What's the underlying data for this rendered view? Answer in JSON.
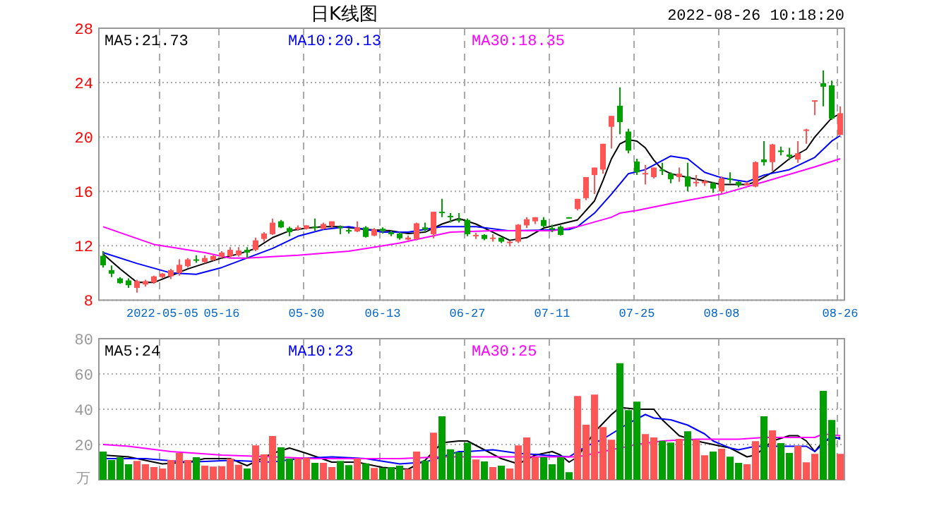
{
  "chart_data": [
    {
      "type": "candlestick",
      "title": "日K线图",
      "subtitle": "2022-08-26 10:18:20",
      "categories": [
        null,
        null,
        null,
        null,
        null,
        null,
        null,
        "2022-05-05",
        null,
        null,
        null,
        null,
        null,
        null,
        "05-16",
        null,
        null,
        null,
        null,
        null,
        null,
        null,
        null,
        null,
        "05-30",
        null,
        null,
        null,
        null,
        null,
        null,
        null,
        null,
        "06-13",
        null,
        null,
        null,
        null,
        null,
        null,
        null,
        null,
        null,
        "06-27",
        null,
        null,
        null,
        null,
        null,
        null,
        null,
        null,
        null,
        "07-11",
        null,
        null,
        null,
        null,
        null,
        null,
        null,
        null,
        null,
        "07-25",
        null,
        null,
        null,
        null,
        null,
        null,
        null,
        null,
        null,
        "08-08",
        null,
        null,
        null,
        null,
        null,
        null,
        null,
        null,
        null,
        null,
        null,
        null,
        null,
        "08-26"
      ],
      "ohlc": [
        [
          11.26,
          11.6,
          10.4,
          10.56
        ],
        [
          10.2,
          10.55,
          9.7,
          9.95
        ],
        [
          9.6,
          9.7,
          9.2,
          9.25
        ],
        [
          9.45,
          9.6,
          8.9,
          9.1
        ],
        [
          8.9,
          9.5,
          8.55,
          9.4
        ],
        [
          9.15,
          9.5,
          9.0,
          9.4
        ],
        [
          9.3,
          9.8,
          9.2,
          9.75
        ],
        [
          9.7,
          10.0,
          9.6,
          9.95
        ],
        [
          9.75,
          10.3,
          9.55,
          10.2
        ],
        [
          10.0,
          11.0,
          9.8,
          10.6
        ],
        [
          10.5,
          11.1,
          10.4,
          11.0
        ],
        [
          11.0,
          11.3,
          10.75,
          10.95
        ],
        [
          10.8,
          11.3,
          10.7,
          11.1
        ],
        [
          10.95,
          11.3,
          10.9,
          11.25
        ],
        [
          11.2,
          11.6,
          11.1,
          11.5
        ],
        [
          11.25,
          11.9,
          11.1,
          11.7
        ],
        [
          11.3,
          11.9,
          11.2,
          11.65
        ],
        [
          11.7,
          11.9,
          11.1,
          11.5
        ],
        [
          11.7,
          12.6,
          11.6,
          12.4
        ],
        [
          12.5,
          13.0,
          12.3,
          12.9
        ],
        [
          12.85,
          14.0,
          12.8,
          13.7
        ],
        [
          13.8,
          13.9,
          13.3,
          13.35
        ],
        [
          13.3,
          13.4,
          12.7,
          13.0
        ],
        [
          13.2,
          13.5,
          13.1,
          13.35
        ],
        [
          13.25,
          13.5,
          13.2,
          13.5
        ],
        [
          13.4,
          14.0,
          13.1,
          13.35
        ],
        [
          13.25,
          13.7,
          13.2,
          13.6
        ],
        [
          13.45,
          13.8,
          13.3,
          13.8
        ],
        [
          13.4,
          13.5,
          12.85,
          13.3
        ],
        [
          13.15,
          13.3,
          12.9,
          13.05
        ],
        [
          13.05,
          13.8,
          13.0,
          13.35
        ],
        [
          13.35,
          13.45,
          12.6,
          12.65
        ],
        [
          12.75,
          13.3,
          12.7,
          13.2
        ],
        [
          13.25,
          13.35,
          12.9,
          13.1
        ],
        [
          13.0,
          13.1,
          12.7,
          12.85
        ],
        [
          12.9,
          13.0,
          12.45,
          12.55
        ],
        [
          12.45,
          12.75,
          12.4,
          12.6
        ],
        [
          12.5,
          13.7,
          12.4,
          13.65
        ],
        [
          13.35,
          13.7,
          13.0,
          13.2
        ],
        [
          12.85,
          14.5,
          12.55,
          14.5
        ],
        [
          14.5,
          15.45,
          14.1,
          14.4
        ],
        [
          14.2,
          14.4,
          13.7,
          14.1
        ],
        [
          13.95,
          14.4,
          13.7,
          13.85
        ],
        [
          13.9,
          14.0,
          12.7,
          12.85
        ],
        [
          12.75,
          12.95,
          12.5,
          12.8
        ],
        [
          12.8,
          12.85,
          12.4,
          12.5
        ],
        [
          12.55,
          12.85,
          12.3,
          12.6
        ],
        [
          12.6,
          12.6,
          12.2,
          12.3
        ],
        [
          12.2,
          12.35,
          11.95,
          12.3
        ],
        [
          12.3,
          13.6,
          12.2,
          13.55
        ],
        [
          13.5,
          14.1,
          13.3,
          13.95
        ],
        [
          13.8,
          14.1,
          13.6,
          14.1
        ],
        [
          13.9,
          14.1,
          13.35,
          13.45
        ],
        [
          13.3,
          13.55,
          13.0,
          13.2
        ],
        [
          13.4,
          13.5,
          12.75,
          12.8
        ],
        [
          14.1,
          14.1,
          14.0,
          14.05
        ],
        [
          14.7,
          15.45,
          14.6,
          15.45
        ],
        [
          15.5,
          17.05,
          15.35,
          17.05
        ],
        [
          17.2,
          17.75,
          15.8,
          17.75
        ],
        [
          17.6,
          19.5,
          17.3,
          19.5
        ],
        [
          20.75,
          21.55,
          19.15,
          21.55
        ],
        [
          22.3,
          23.65,
          20.2,
          21.1
        ],
        [
          20.4,
          20.6,
          18.8,
          19.0
        ],
        [
          18.2,
          18.4,
          17.2,
          17.4
        ],
        [
          17.3,
          17.95,
          16.5,
          17.35
        ],
        [
          17.05,
          17.75,
          16.95,
          17.75
        ],
        [
          17.6,
          18.1,
          17.2,
          17.5
        ],
        [
          17.3,
          17.4,
          16.6,
          16.9
        ],
        [
          17.05,
          17.75,
          16.7,
          17.3
        ],
        [
          17.1,
          18.1,
          16.0,
          16.35
        ],
        [
          16.65,
          17.2,
          16.35,
          16.7
        ],
        [
          16.6,
          16.85,
          16.4,
          16.75
        ],
        [
          16.6,
          16.7,
          15.9,
          16.2
        ],
        [
          16.0,
          17.1,
          15.85,
          16.95
        ],
        [
          16.95,
          17.4,
          16.6,
          16.9
        ],
        [
          16.7,
          16.75,
          16.3,
          16.45
        ],
        [
          16.45,
          16.7,
          16.45,
          16.6
        ],
        [
          16.35,
          18.2,
          16.3,
          18.15
        ],
        [
          18.35,
          19.7,
          17.9,
          18.15
        ],
        [
          18.15,
          19.5,
          17.5,
          19.45
        ],
        [
          19.0,
          19.3,
          18.65,
          18.95
        ],
        [
          18.7,
          19.2,
          18.3,
          18.55
        ],
        [
          18.35,
          19.7,
          18.1,
          18.8
        ],
        [
          20.5,
          20.6,
          19.5,
          20.55
        ],
        [
          22.65,
          22.7,
          21.6,
          22.7
        ],
        [
          23.95,
          24.9,
          22.25,
          23.7
        ],
        [
          23.8,
          24.15,
          21.25,
          21.35
        ],
        [
          20.15,
          22.25,
          20.15,
          21.75
        ]
      ],
      "series": [
        {
          "name": "MA5:21.73",
          "type": "line",
          "color": "#000000",
          "values": [
            11.4,
            null,
            10.3,
            null,
            9.3,
            null,
            9.3,
            null,
            9.8,
            null,
            10.3,
            null,
            10.7,
            null,
            11.1,
            null,
            11.4,
            null,
            11.8,
            null,
            12.6,
            null,
            13.1,
            null,
            13.3,
            null,
            13.4,
            null,
            13.4,
            null,
            null,
            13.2,
            null,
            null,
            13.1,
            null,
            12.9,
            null,
            13.0,
            null,
            13.6,
            null,
            14.0,
            null,
            13.6,
            null,
            13.0,
            null,
            12.4,
            null,
            12.6,
            null,
            13.3,
            null,
            13.6,
            null,
            13.9,
            null,
            15.3,
            16.8,
            18.4,
            19.5,
            19.8,
            19.7,
            19.2,
            18.3,
            17.6,
            17.3,
            null,
            null,
            16.9,
            null,
            null,
            16.5,
            null,
            null,
            16.5,
            16.7,
            null,
            17.4,
            null,
            18.4,
            null,
            19.1,
            20.0,
            null,
            21.4,
            21.7
          ]
        },
        {
          "name": "MA10:20.13",
          "type": "line",
          "color": "#0000ff",
          "values": [
            11.5,
            null,
            null,
            null,
            10.7,
            null,
            null,
            null,
            10.0,
            null,
            null,
            9.9,
            null,
            null,
            10.4,
            null,
            null,
            11.1,
            null,
            null,
            11.8,
            null,
            null,
            12.7,
            null,
            null,
            13.2,
            null,
            null,
            13.4,
            null,
            null,
            null,
            13.0,
            null,
            null,
            13.0,
            null,
            null,
            null,
            13.4,
            null,
            null,
            null,
            13.4,
            null,
            null,
            null,
            13.1,
            null,
            null,
            null,
            null,
            null,
            null,
            13.2,
            13.4,
            null,
            14.4,
            null,
            15.8,
            null,
            17.3,
            null,
            17.6,
            null,
            null,
            18.6,
            null,
            18.4,
            null,
            17.4,
            null,
            17.0,
            null,
            null,
            16.7,
            null,
            17.2,
            null,
            null,
            17.6,
            null,
            null,
            18.5,
            null,
            19.7,
            20.1
          ]
        },
        {
          "name": "MA30:18.35",
          "type": "line",
          "color": "#ff00ff",
          "values": [
            13.4,
            null,
            null,
            null,
            null,
            null,
            12.1,
            null,
            null,
            null,
            null,
            null,
            11.5,
            null,
            null,
            11.1,
            null,
            11.1,
            null,
            null,
            null,
            null,
            null,
            11.3,
            null,
            null,
            null,
            null,
            null,
            11.6,
            null,
            11.8,
            null,
            null,
            null,
            12.2,
            null,
            null,
            null,
            null,
            null,
            13.0,
            null,
            null,
            null,
            null,
            13.1,
            null,
            null,
            null,
            null,
            null,
            null,
            13.1,
            null,
            null,
            13.4,
            null,
            null,
            null,
            14.1,
            14.4,
            null,
            14.6,
            null,
            null,
            null,
            15.1,
            null,
            null,
            null,
            null,
            null,
            15.8,
            null,
            null,
            null,
            null,
            16.7,
            null,
            null,
            null,
            null,
            null,
            17.8,
            null,
            null,
            18.4
          ]
        }
      ],
      "ylim": [
        8,
        28
      ],
      "yticks": [
        8,
        12,
        16,
        20,
        24,
        28
      ],
      "grid": true,
      "legend": "top"
    },
    {
      "type": "bar",
      "ylabel": "万",
      "categories": [
        null,
        null,
        null,
        null,
        null,
        null,
        null,
        null,
        null,
        null,
        null,
        null,
        null,
        null,
        null,
        null,
        null,
        null,
        null,
        null,
        null,
        null,
        null,
        null,
        null,
        null,
        null,
        null,
        null,
        null,
        null,
        null,
        null,
        null,
        null,
        null,
        null,
        null,
        null,
        null,
        null,
        null,
        null,
        null,
        null,
        null,
        null,
        null,
        null,
        null,
        null,
        null,
        null,
        null,
        null,
        null,
        null,
        null,
        null,
        null,
        null,
        null,
        null,
        null,
        null,
        null,
        null,
        null,
        null,
        null,
        null,
        null,
        null,
        null,
        null,
        null,
        null,
        null,
        null,
        null,
        null,
        null,
        null,
        null,
        null,
        null,
        null,
        null
      ],
      "values": [
        16,
        11.2,
        12.8,
        8.8,
        10.7,
        8.8,
        7.2,
        6.4,
        11.2,
        15.2,
        11.2,
        12.8,
        8,
        7.5,
        7.7,
        12,
        8.5,
        6.4,
        19.5,
        14.4,
        24.8,
        18.4,
        12,
        12,
        12.5,
        9.6,
        9.6,
        7.2,
        10.7,
        8.3,
        12,
        9.3,
        6.7,
        6.7,
        7.2,
        8,
        6.1,
        16,
        10.9,
        26.7,
        36,
        17.3,
        15.7,
        21,
        11.5,
        10.4,
        7.2,
        8,
        6.4,
        19.5,
        24,
        12.8,
        12.8,
        8.8,
        12.8,
        4.3,
        47.5,
        31.2,
        48.3,
        29.9,
        22.7,
        66.1,
        39.5,
        44.3,
        25.9,
        24,
        22.1,
        21.1,
        23.2,
        27.5,
        22.7,
        13.9,
        16,
        17.6,
        13.1,
        9.6,
        8.8,
        21.9,
        36,
        28,
        20.8,
        15.2,
        19.2,
        9.9,
        14.7,
        50.4,
        33.9,
        14.7
      ],
      "colors": [
        "#00a000",
        "#00a000",
        "#00a000",
        "#00a000",
        "#ff5555",
        "#ff5555",
        "#ff5555",
        "#ff5555",
        "#ff5555",
        "#ff5555",
        "#ff5555",
        "#00a000",
        "#ff5555",
        "#ff5555",
        "#ff5555",
        "#ff5555",
        "#ff5555",
        "#00a000",
        "#ff5555",
        "#ff5555",
        "#ff5555",
        "#00a000",
        "#00a000",
        "#ff5555",
        "#ff5555",
        "#00a000",
        "#ff5555",
        "#ff5555",
        "#00a000",
        "#00a000",
        "#ff5555",
        "#00a000",
        "#ff5555",
        "#00a000",
        "#00a000",
        "#00a000",
        "#ff5555",
        "#ff5555",
        "#00a000",
        "#ff5555",
        "#00a000",
        "#00a000",
        "#00a000",
        "#00a000",
        "#ff5555",
        "#00a000",
        "#ff5555",
        "#00a000",
        "#ff5555",
        "#ff5555",
        "#ff5555",
        "#ff5555",
        "#00a000",
        "#00a000",
        "#00a000",
        "#00a000",
        "#ff5555",
        "#ff5555",
        "#ff5555",
        "#ff5555",
        "#ff5555",
        "#00a000",
        "#00a000",
        "#00a000",
        "#ff5555",
        "#ff5555",
        "#00a000",
        "#00a000",
        "#ff5555",
        "#00a000",
        "#ff5555",
        "#ff5555",
        "#00a000",
        "#ff5555",
        "#00a000",
        "#00a000",
        "#ff5555",
        "#ff5555",
        "#00a000",
        "#ff5555",
        "#00a000",
        "#00a000",
        "#ff5555",
        "#ff5555",
        "#ff5555",
        "#00a000",
        "#00a000",
        "#ff5555"
      ],
      "series": [
        {
          "name": "MA5:24",
          "type": "line",
          "color": "#000000",
          "values": [
            14,
            null,
            null,
            13,
            null,
            11,
            null,
            9,
            null,
            null,
            10,
            null,
            12,
            null,
            null,
            12,
            null,
            8,
            null,
            null,
            15,
            null,
            18,
            null,
            15,
            null,
            null,
            10,
            null,
            null,
            10,
            null,
            null,
            7,
            null,
            null,
            6,
            null,
            11,
            null,
            21,
            null,
            22,
            22,
            null,
            17,
            null,
            12,
            null,
            9,
            null,
            14,
            null,
            16,
            14,
            10,
            13,
            null,
            27,
            null,
            37,
            41,
            null,
            40,
            null,
            40,
            34,
            null,
            25,
            null,
            22,
            null,
            20,
            null,
            18,
            null,
            13,
            14,
            null,
            22,
            null,
            25,
            25,
            22,
            16,
            22,
            null,
            24
          ]
        },
        {
          "name": "MA10:23",
          "type": "line",
          "color": "#0000ff",
          "values": [
            12,
            null,
            null,
            null,
            null,
            12,
            null,
            null,
            null,
            null,
            10,
            null,
            null,
            null,
            null,
            11,
            null,
            null,
            null,
            null,
            10,
            null,
            null,
            12,
            null,
            null,
            null,
            13,
            null,
            null,
            null,
            12,
            null,
            null,
            null,
            9,
            null,
            null,
            10,
            null,
            13,
            null,
            16,
            16,
            null,
            null,
            17,
            null,
            null,
            15,
            null,
            null,
            14,
            null,
            null,
            13,
            null,
            19,
            null,
            23,
            null,
            null,
            32,
            null,
            37,
            35,
            null,
            34,
            null,
            31,
            null,
            26,
            22,
            null,
            18,
            17,
            null,
            19,
            null,
            null,
            19,
            null,
            null,
            19,
            16,
            null,
            25,
            23
          ]
        },
        {
          "name": "MA30:25",
          "type": "line",
          "color": "#ff00ff",
          "values": [
            20,
            null,
            null,
            19,
            null,
            null,
            null,
            null,
            16,
            null,
            null,
            null,
            null,
            null,
            14,
            null,
            null,
            null,
            null,
            null,
            13,
            null,
            null,
            null,
            null,
            12,
            null,
            null,
            null,
            null,
            12,
            null,
            null,
            null,
            null,
            12,
            null,
            null,
            null,
            null,
            13,
            null,
            null,
            13,
            null,
            null,
            null,
            null,
            null,
            null,
            13,
            null,
            null,
            null,
            null,
            null,
            13,
            null,
            15,
            null,
            17,
            null,
            null,
            20,
            null,
            null,
            22,
            null,
            null,
            null,
            23,
            null,
            null,
            null,
            null,
            23,
            null,
            null,
            24,
            null,
            24,
            null,
            null,
            null,
            24,
            26,
            null,
            25
          ]
        }
      ],
      "ylim": [
        0,
        80
      ],
      "yticks": [
        20,
        40,
        60,
        80
      ],
      "grid": true,
      "legend": "top",
      "tick_labels": "y"
    }
  ]
}
